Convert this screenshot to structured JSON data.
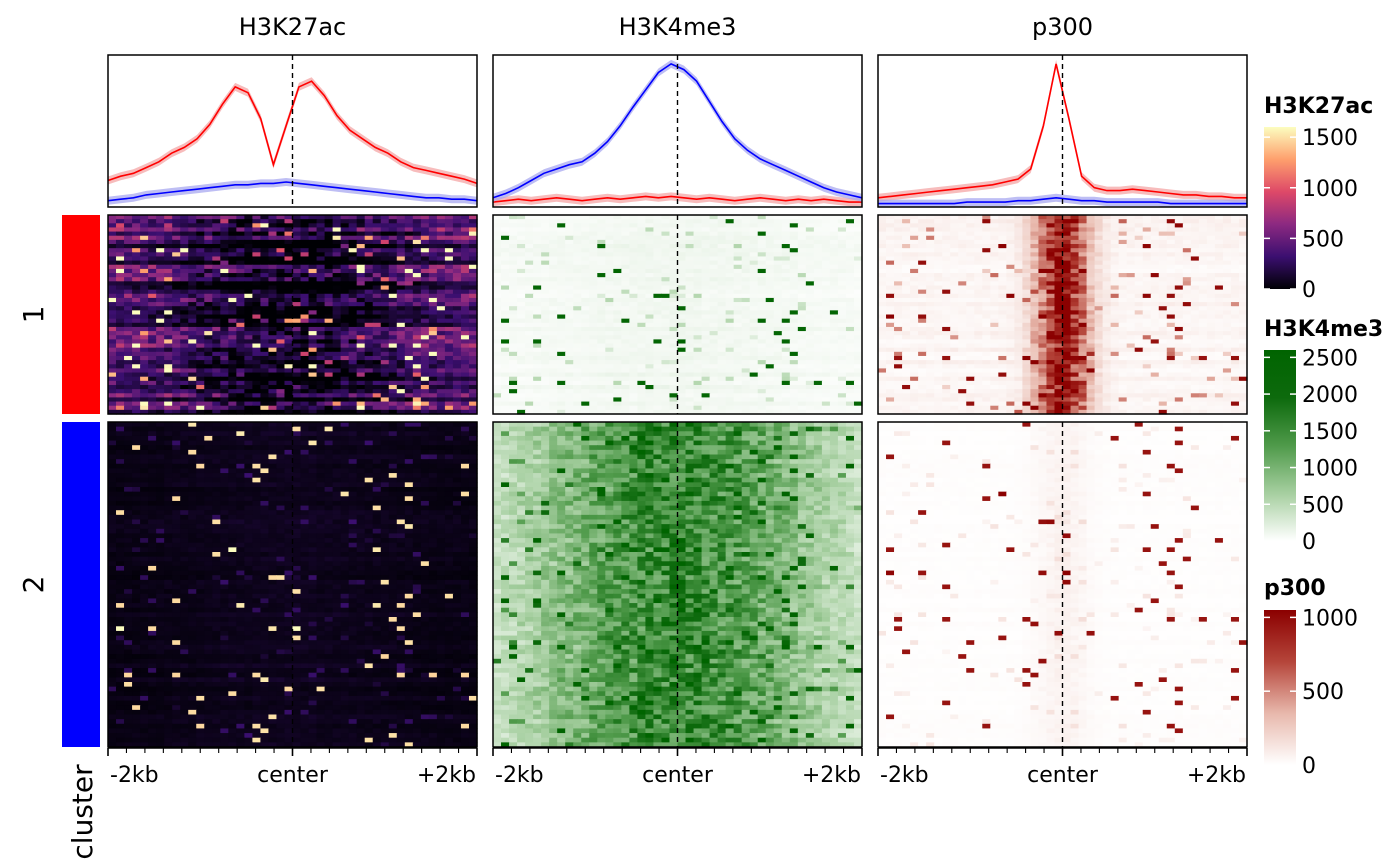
{
  "chart_data": {
    "type": "heatmap",
    "description_free": true,
    "x_ticks": [
      "-2kb",
      "center",
      "+2kb"
    ],
    "cluster_axis_label": "cluster",
    "clusters": [
      {
        "label": "1",
        "color": "#ff0000"
      },
      {
        "label": "2",
        "color": "#0000ff"
      }
    ],
    "panels": [
      {
        "title": "H3K27ac",
        "legend": {
          "title": "H3K27ac",
          "ticks": [
            "1500",
            "1000",
            "500",
            "0"
          ],
          "tick_values": [
            1500,
            1000,
            500,
            0
          ],
          "range": [
            0,
            1600
          ],
          "colors": [
            "#000004",
            "#3b0f70",
            "#8c2981",
            "#de4968",
            "#fe9f6d",
            "#fcfdbf"
          ]
        },
        "profile": {
          "cluster1_red": [
            0.17,
            0.2,
            0.22,
            0.26,
            0.3,
            0.36,
            0.4,
            0.46,
            0.56,
            0.7,
            0.82,
            0.78,
            0.6,
            0.28,
            0.55,
            0.82,
            0.86,
            0.76,
            0.62,
            0.52,
            0.46,
            0.4,
            0.36,
            0.3,
            0.26,
            0.24,
            0.22,
            0.2,
            0.18,
            0.15
          ],
          "cluster2_blue": [
            0.03,
            0.04,
            0.05,
            0.07,
            0.08,
            0.09,
            0.1,
            0.11,
            0.12,
            0.13,
            0.14,
            0.14,
            0.15,
            0.15,
            0.16,
            0.15,
            0.14,
            0.13,
            0.12,
            0.11,
            0.1,
            0.09,
            0.08,
            0.07,
            0.06,
            0.05,
            0.05,
            0.04,
            0.04,
            0.03
          ],
          "ylim": [
            0,
            1
          ]
        },
        "heat": {
          "bg1": 0.3,
          "bg2": 0.03,
          "center1": -0.25,
          "center2": 0.02,
          "width": 0.45,
          "spike1": 0.55,
          "spike2": 0.1
        }
      },
      {
        "title": "H3K4me3",
        "legend": {
          "title": "H3K4me3",
          "ticks": [
            "2500",
            "2000",
            "1500",
            "1000",
            "500",
            "0"
          ],
          "tick_values": [
            2500,
            2000,
            1500,
            1000,
            500,
            0
          ],
          "range": [
            0,
            2600
          ],
          "colors": [
            "#ffffff",
            "#a6cfa0",
            "#4f9a4a",
            "#0d6a0d",
            "#006400"
          ]
        },
        "profile": {
          "cluster1_red": [
            0.02,
            0.03,
            0.04,
            0.03,
            0.04,
            0.05,
            0.04,
            0.03,
            0.04,
            0.05,
            0.04,
            0.05,
            0.06,
            0.05,
            0.06,
            0.05,
            0.04,
            0.05,
            0.04,
            0.03,
            0.04,
            0.05,
            0.04,
            0.03,
            0.04,
            0.03,
            0.04,
            0.03,
            0.02,
            0.02
          ],
          "cluster2_blue": [
            0.05,
            0.08,
            0.12,
            0.17,
            0.22,
            0.25,
            0.28,
            0.3,
            0.36,
            0.44,
            0.55,
            0.68,
            0.8,
            0.92,
            0.98,
            0.94,
            0.86,
            0.72,
            0.58,
            0.46,
            0.38,
            0.32,
            0.28,
            0.24,
            0.2,
            0.16,
            0.12,
            0.09,
            0.07,
            0.05
          ],
          "ylim": [
            0,
            1
          ]
        },
        "heat": {
          "bg1": 0.02,
          "bg2": 0.05,
          "center1": 0.02,
          "center2": 0.55,
          "width": 0.55,
          "spike1": 0.12,
          "spike2": 0.35
        }
      },
      {
        "title": "p300",
        "legend": {
          "title": "p300",
          "ticks": [
            "1000",
            "500",
            "0"
          ],
          "tick_values": [
            1000,
            500,
            0
          ],
          "range": [
            0,
            1050
          ],
          "colors": [
            "#ffffff",
            "#e8b8ac",
            "#b5453a",
            "#8b0000"
          ]
        },
        "profile": {
          "cluster1_red": [
            0.05,
            0.06,
            0.07,
            0.08,
            0.09,
            0.1,
            0.11,
            0.12,
            0.13,
            0.14,
            0.16,
            0.18,
            0.25,
            0.55,
            0.98,
            0.6,
            0.2,
            0.12,
            0.1,
            0.1,
            0.11,
            0.1,
            0.09,
            0.08,
            0.07,
            0.07,
            0.06,
            0.06,
            0.05,
            0.05
          ],
          "cluster2_blue": [
            0.01,
            0.01,
            0.01,
            0.01,
            0.01,
            0.01,
            0.01,
            0.02,
            0.02,
            0.02,
            0.02,
            0.03,
            0.03,
            0.04,
            0.05,
            0.04,
            0.03,
            0.03,
            0.02,
            0.02,
            0.02,
            0.02,
            0.02,
            0.01,
            0.01,
            0.01,
            0.01,
            0.01,
            0.01,
            0.01
          ],
          "ylim": [
            0,
            1
          ]
        },
        "heat": {
          "bg1": 0.05,
          "bg2": 0.01,
          "center1": 0.85,
          "center2": 0.05,
          "width": 0.1,
          "spike1": 0.35,
          "spike2": 0.08
        }
      }
    ]
  }
}
